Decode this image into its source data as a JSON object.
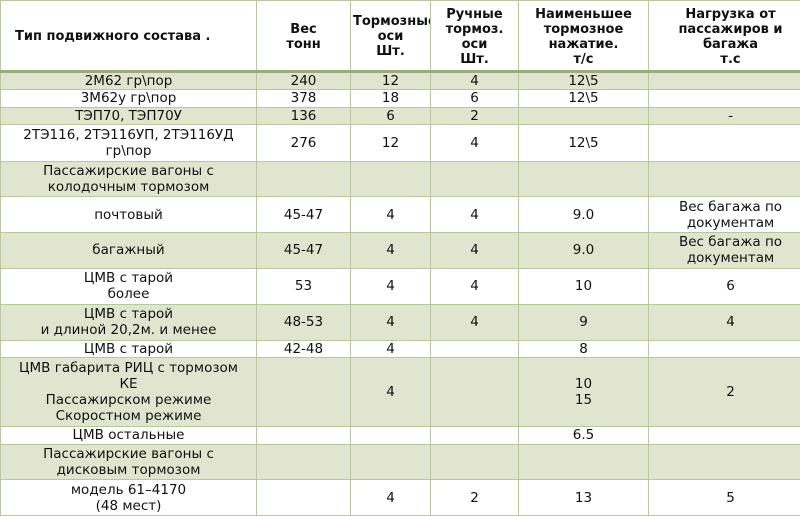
{
  "colors": {
    "shade": "#e1e5cf",
    "border": "#b9c7a0",
    "header_rule": "#9aab7d"
  },
  "headers": [
    "Тип подвижного состава .",
    "Вес\nтонн",
    "Тормозные\nоси\nШт.",
    "Ручные\nтормоз.\nоси\nШт.",
    "Наименьшее\nтормозное\nнажатие.\nт/с",
    "Нагрузка от\nпассажиров и\nбагажа\nт.с"
  ],
  "rows": [
    {
      "shade": true,
      "cells": [
        "2М62 гр\\пор",
        "240",
        "12",
        "4",
        "12\\5",
        ""
      ]
    },
    {
      "shade": false,
      "cells": [
        "3М62у гр\\пор",
        "378",
        "18",
        "6",
        "12\\5",
        ""
      ]
    },
    {
      "shade": true,
      "cells": [
        "ТЭП70, ТЭП70У",
        "136",
        "6",
        "2",
        "",
        "-"
      ]
    },
    {
      "shade": false,
      "cells": [
        "2ТЭ116, 2ТЭ116УП, 2ТЭ116УД\nгр\\пор",
        "276",
        "12",
        "4",
        "12\\5",
        ""
      ]
    },
    {
      "shade": true,
      "cells": [
        "Пассажирские вагоны с\nколодочным тормозом",
        "",
        "",
        "",
        "",
        ""
      ]
    },
    {
      "shade": false,
      "cells": [
        "почтовый",
        "45-47",
        "4",
        "4",
        "9.0",
        "Вес багажа по\nдокументам"
      ]
    },
    {
      "shade": true,
      "cells": [
        "багажный",
        "45-47",
        "4",
        "4",
        "9.0",
        "Вес багажа по\nдокументам"
      ]
    },
    {
      "shade": false,
      "cells": [
        "ЦМВ с тарой\nболее",
        "53",
        "4",
        "4",
        "10",
        "6"
      ]
    },
    {
      "shade": true,
      "cells": [
        "ЦМВ с тарой\nи длиной 20,2м. и менее",
        "48-53",
        "4",
        "4",
        "9",
        "4"
      ]
    },
    {
      "shade": false,
      "cells": [
        "ЦМВ с тарой",
        "42-48",
        "4",
        "",
        "8",
        ""
      ]
    },
    {
      "shade": true,
      "cells": [
        "ЦМВ габарита РИЦ с тормозом\nКЕ\nПассажирском режиме\nСкоростном режиме",
        "",
        "4",
        "",
        "10\n15",
        "2"
      ]
    },
    {
      "shade": false,
      "cells": [
        "ЦМВ остальные",
        "",
        "",
        "",
        "6.5",
        ""
      ]
    },
    {
      "shade": true,
      "cells": [
        "Пассажирские вагоны с\nдисковым тормозом",
        "",
        "",
        "",
        "",
        ""
      ]
    },
    {
      "shade": false,
      "cells": [
        "модель 61–4170\n(48 мест)",
        "",
        "4",
        "2",
        "13",
        "5"
      ]
    }
  ]
}
